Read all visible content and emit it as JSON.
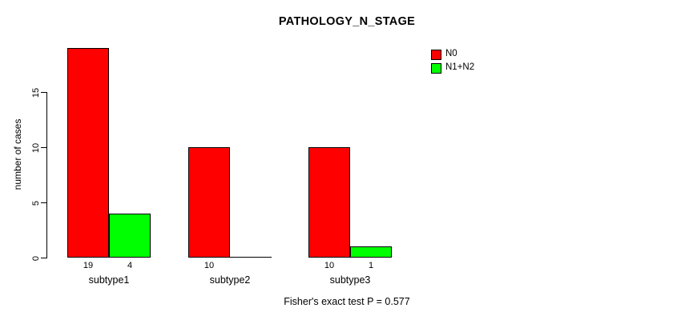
{
  "chart_data": {
    "type": "bar",
    "title": "PATHOLOGY_N_STAGE",
    "categories": [
      "subtype1",
      "subtype2",
      "subtype3"
    ],
    "series": [
      {
        "name": "N0",
        "color": "#ff0000",
        "values": [
          19,
          10,
          10
        ]
      },
      {
        "name": "N1+N2",
        "color": "#00ff00",
        "values": [
          4,
          0,
          1
        ]
      }
    ],
    "xlabel": "",
    "ylabel": "number of cases",
    "yticks": [
      "0",
      "5",
      "10",
      "15"
    ],
    "ylim": [
      0,
      19
    ],
    "grid": false,
    "legend_position": "top-right",
    "bar_value_labels_shown": true,
    "annotation": "Fisher's exact test P = 0.577"
  },
  "legend": {
    "items": [
      {
        "label": "N0",
        "color": "#ff0000"
      },
      {
        "label": "N1+N2",
        "color": "#00ff00"
      }
    ]
  }
}
